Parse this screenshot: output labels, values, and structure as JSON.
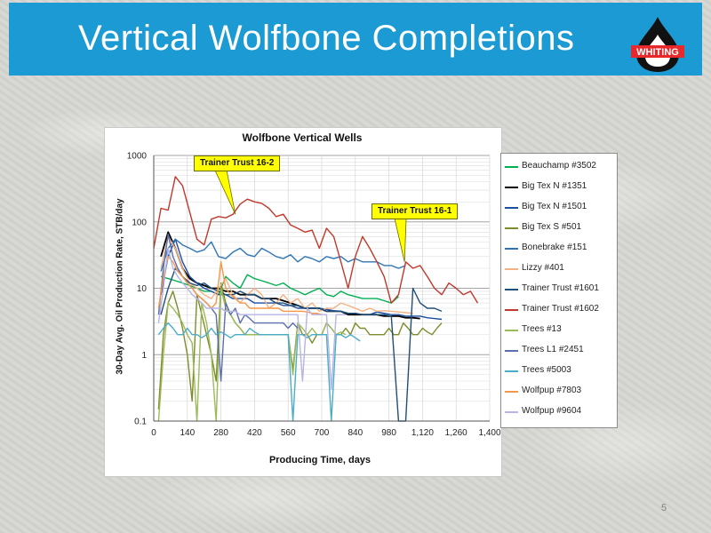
{
  "slide": {
    "title": "Vertical Wolfbone Completions",
    "logo_text": "WHITING",
    "page_number": "5",
    "colors": {
      "title_bar": "#1b9ad4",
      "logo_red": "#e8282b",
      "logo_black": "#111111"
    }
  },
  "chart_data": {
    "type": "line",
    "title": "Wolfbone Vertical Wells",
    "xlabel": "Producing Time, days",
    "ylabel": "30-Day Avg. Oil Production Rate, STB/day",
    "yscale": "log",
    "xlim": [
      0,
      1400
    ],
    "ylim": [
      0.1,
      1000
    ],
    "x_ticks": [
      "0",
      "140",
      "280",
      "420",
      "560",
      "700",
      "840",
      "980",
      "1,120",
      "1,260",
      "1,400"
    ],
    "y_ticks": [
      "0.1",
      "1",
      "10",
      "100",
      "1000"
    ],
    "grid": true,
    "legend_position": "right",
    "annotations": [
      {
        "text": "Trainer Trust 16-2",
        "x": 340,
        "y": 130
      },
      {
        "text": "Trainer Trust 16-1",
        "x": 1045,
        "y": 25
      }
    ],
    "series": [
      {
        "name": "Beauchamp #3502",
        "color": "#00b050",
        "x": [
          30,
          60,
          90,
          120,
          150,
          180,
          210,
          240,
          270,
          300,
          330,
          360,
          390,
          420,
          450,
          480,
          510,
          540,
          570,
          600,
          630,
          660,
          690,
          720,
          750,
          780,
          810,
          840,
          870,
          900,
          930,
          960,
          990,
          1020
        ],
        "y": [
          15,
          14,
          13,
          12,
          11,
          10,
          9,
          9,
          8,
          15,
          12,
          10,
          16,
          14,
          13,
          12,
          11,
          12,
          10,
          9,
          8,
          9,
          10,
          8,
          7.5,
          9,
          8,
          7.5,
          7,
          7,
          7,
          6.5,
          6,
          7.5
        ]
      },
      {
        "name": "Big Tex N #1351",
        "color": "#000000",
        "x": [
          30,
          60,
          90,
          120,
          150,
          180,
          210,
          240,
          270,
          300,
          330,
          360,
          390,
          420,
          450,
          480,
          510,
          540,
          570,
          600,
          630,
          660,
          690,
          720,
          750,
          780,
          810,
          840,
          870,
          900,
          930,
          960,
          990,
          1020,
          1050,
          1080,
          1110
        ],
        "y": [
          30,
          70,
          40,
          20,
          14,
          12,
          11,
          10,
          10,
          9,
          9,
          8,
          8,
          8,
          7,
          7,
          7,
          6.5,
          6,
          5.5,
          5,
          5,
          5,
          4.5,
          4.5,
          4.5,
          4,
          4,
          4,
          4,
          4,
          3.8,
          3.8,
          3.8,
          3.6,
          3.6,
          3.5
        ]
      },
      {
        "name": "Big Tex N #1501",
        "color": "#1f4e9f",
        "x": [
          30,
          60,
          90,
          120,
          150,
          180,
          210,
          240,
          270,
          300,
          330,
          360,
          390,
          420,
          450,
          480,
          510,
          540,
          570,
          600,
          630,
          660,
          690,
          720,
          750,
          780,
          810,
          840,
          870,
          900,
          930,
          960,
          990,
          1020,
          1050,
          1080,
          1110,
          1140,
          1170,
          1200
        ],
        "y": [
          8,
          30,
          55,
          25,
          15,
          12,
          10,
          9,
          8,
          8,
          7,
          7,
          7,
          6,
          6,
          6,
          6,
          5.5,
          5.5,
          5,
          5,
          5,
          5,
          4.8,
          4.6,
          4.5,
          4.2,
          4.2,
          4,
          4,
          4.4,
          4.2,
          4,
          4,
          3.8,
          3.8,
          3.8,
          3.6,
          3.5,
          3.4
        ]
      },
      {
        "name": "Big Tex S #501",
        "color": "#7f8c2b",
        "x": [
          20,
          40,
          60,
          80,
          100,
          120,
          140,
          160,
          180,
          200,
          220,
          240,
          260,
          280,
          300,
          320,
          340,
          360,
          380,
          400,
          420,
          440,
          460,
          480,
          500,
          520,
          540,
          560,
          580,
          600,
          620,
          640,
          660,
          680,
          700,
          720,
          740,
          760,
          780,
          800,
          820,
          840,
          860,
          880,
          900,
          920,
          940,
          960,
          980,
          1000,
          1020,
          1040,
          1060,
          1080,
          1100,
          1120,
          1140,
          1160,
          1180,
          1200
        ],
        "y": [
          0.15,
          2,
          6,
          9,
          5,
          2.5,
          1,
          0.2,
          8,
          4,
          2,
          1,
          0.4,
          12,
          6,
          4,
          3,
          2.5,
          2,
          2,
          2,
          2,
          2,
          2,
          2,
          2,
          2,
          2,
          0.6,
          3,
          2,
          2,
          1.5,
          2,
          2,
          3,
          2.5,
          2,
          2,
          2.5,
          2,
          3,
          2.5,
          2.5,
          2,
          2,
          2,
          2,
          2.5,
          2,
          2,
          3,
          2.5,
          2,
          2,
          2.5,
          2.2,
          2,
          2.5,
          3
        ]
      },
      {
        "name": "Bonebrake #151",
        "color": "#2e75b6",
        "x": [
          30,
          60,
          90,
          120,
          150,
          180,
          210,
          240,
          270,
          300,
          330,
          360,
          390,
          420,
          450,
          480,
          510,
          540,
          570,
          600,
          630,
          660,
          690,
          720,
          750,
          780,
          810,
          840,
          870,
          900,
          930,
          960,
          990,
          1020,
          1050
        ],
        "y": [
          18,
          40,
          55,
          45,
          40,
          35,
          38,
          50,
          30,
          28,
          35,
          40,
          32,
          30,
          40,
          35,
          30,
          28,
          32,
          25,
          30,
          28,
          25,
          30,
          28,
          30,
          25,
          28,
          25,
          25,
          25,
          22,
          22,
          20,
          22
        ]
      },
      {
        "name": "Lizzy #401",
        "color": "#f4b183",
        "x": [
          30,
          60,
          90,
          120,
          150,
          180,
          210,
          240,
          270,
          300,
          330,
          360,
          390,
          420,
          450,
          480,
          510,
          540,
          570,
          600,
          630,
          660,
          690,
          720,
          750,
          780,
          810,
          840,
          870,
          900,
          930,
          960,
          990,
          1020,
          1050,
          1080
        ],
        "y": [
          20,
          60,
          40,
          20,
          12,
          10,
          8,
          7,
          10,
          14,
          8,
          6,
          8,
          10,
          8,
          5,
          6,
          8,
          6,
          7,
          5,
          6,
          4.5,
          5,
          5,
          6,
          5.5,
          5,
          4.5,
          5,
          4.5,
          4.6,
          4.5,
          4.4,
          4.3,
          4.2
        ]
      },
      {
        "name": "Trainer Trust #1601",
        "color": "#1f4e79",
        "x": [
          30,
          60,
          90,
          120,
          150,
          180,
          210,
          240,
          270,
          300,
          330,
          360,
          390,
          420,
          450,
          480,
          510,
          540,
          570,
          600,
          630,
          660,
          690,
          720,
          750,
          780,
          810,
          840,
          870,
          900,
          930,
          960,
          990,
          1020,
          1050,
          1080,
          1110,
          1140,
          1170,
          1200
        ],
        "y": [
          4,
          10,
          20,
          15,
          12,
          11,
          12,
          10,
          9,
          8,
          8,
          9,
          8,
          8,
          7,
          7,
          6,
          6,
          5.5,
          5.5,
          5,
          5,
          5,
          4.5,
          4.5,
          4.5,
          4.2,
          4.2,
          4,
          4,
          4,
          4,
          3.8,
          0.1,
          0.1,
          10,
          6,
          5,
          5,
          4.5
        ]
      },
      {
        "name": "Trainer Trust #1602",
        "color": "#c0392b",
        "x": [
          0,
          30,
          60,
          90,
          120,
          150,
          180,
          210,
          240,
          270,
          300,
          330,
          360,
          390,
          420,
          450,
          480,
          510,
          540,
          570,
          600,
          630,
          660,
          690,
          720,
          750,
          780,
          810,
          840,
          870,
          900,
          930,
          960,
          990,
          1020,
          1050,
          1080,
          1110,
          1140,
          1170,
          1200,
          1230,
          1260,
          1290,
          1320,
          1350
        ],
        "y": [
          40,
          160,
          150,
          480,
          350,
          140,
          55,
          45,
          110,
          120,
          115,
          130,
          185,
          220,
          200,
          190,
          160,
          120,
          130,
          90,
          80,
          70,
          75,
          40,
          80,
          60,
          25,
          10,
          30,
          60,
          40,
          25,
          15,
          6,
          8,
          25,
          20,
          22,
          15,
          10,
          8,
          12,
          10,
          8,
          9,
          6
        ]
      },
      {
        "name": "Trees #13",
        "color": "#9bbb59",
        "x": [
          20,
          40,
          60,
          80,
          100,
          120,
          140,
          160,
          180,
          200,
          220,
          240,
          260,
          280,
          300,
          320,
          340,
          360,
          380,
          400,
          420,
          440,
          460,
          480,
          500,
          520,
          540,
          560,
          580,
          600,
          620,
          640,
          660,
          680,
          700,
          720,
          740,
          760,
          780,
          800
        ],
        "y": [
          0.1,
          1,
          6,
          5,
          4,
          3,
          2,
          1.5,
          0.1,
          6,
          3,
          1,
          0.1,
          10,
          5,
          4,
          3,
          2.5,
          2,
          2,
          2,
          2,
          2,
          2,
          2,
          2,
          2,
          2,
          0.5,
          3,
          2.5,
          2,
          2.5,
          2,
          2,
          3,
          2.5,
          2,
          2.2,
          2
        ]
      },
      {
        "name": "Trees L1 #2451",
        "color": "#5b6fae",
        "x": [
          20,
          40,
          60,
          80,
          100,
          120,
          140,
          160,
          180,
          200,
          220,
          240,
          260,
          280,
          300,
          320,
          340,
          360,
          380,
          400,
          420,
          440,
          460,
          480,
          500,
          520,
          540,
          560,
          580,
          600
        ],
        "y": [
          4,
          20,
          65,
          30,
          20,
          15,
          12,
          10,
          8,
          7,
          6,
          5,
          4,
          0.4,
          6,
          4,
          5,
          3,
          4,
          3.5,
          3,
          3,
          3,
          3,
          3,
          3,
          3,
          2.5,
          3,
          2.5
        ]
      },
      {
        "name": "Trees #5003",
        "color": "#4bacc6",
        "x": [
          20,
          40,
          60,
          80,
          100,
          120,
          140,
          160,
          180,
          200,
          220,
          240,
          260,
          280,
          300,
          320,
          340,
          360,
          380,
          400,
          420,
          440,
          460,
          480,
          500,
          520,
          540,
          560,
          580,
          600,
          620,
          640,
          660,
          680,
          700,
          720,
          740,
          760,
          780,
          800,
          820,
          840,
          860
        ],
        "y": [
          2,
          2.5,
          3,
          2.5,
          2,
          2,
          2.5,
          2,
          2,
          1.8,
          2,
          2.5,
          2,
          2.2,
          2,
          1.8,
          2,
          2,
          2,
          2.5,
          2.2,
          2,
          2,
          2,
          2,
          2,
          2,
          2,
          0.1,
          2,
          2,
          1.8,
          2,
          2,
          2,
          2,
          0.1,
          2,
          2,
          1.8,
          2,
          1.8,
          1.6
        ]
      },
      {
        "name": "Wolfpup #7803",
        "color": "#f79646",
        "x": [
          20,
          40,
          60,
          80,
          100,
          120,
          140,
          160,
          180,
          200,
          220,
          240,
          260,
          280,
          300,
          320,
          340,
          360,
          380,
          400,
          420,
          440,
          460,
          480,
          500,
          520,
          540,
          560,
          580,
          600,
          620,
          640,
          660,
          680,
          700
        ],
        "y": [
          5,
          15,
          30,
          25,
          18,
          15,
          12,
          10,
          8,
          7,
          6,
          5,
          6,
          25,
          10,
          8,
          7,
          6,
          6,
          5,
          5,
          5,
          5,
          5,
          5,
          5,
          4.5,
          4.5,
          4.5,
          4.5,
          4.5,
          4.4,
          4.2,
          4.2,
          4
        ]
      },
      {
        "name": "Wolfpup #9604",
        "color": "#b4b4e6",
        "x": [
          20,
          40,
          60,
          80,
          100,
          120,
          140,
          160,
          180,
          200,
          220,
          240,
          260,
          280,
          300,
          320,
          340,
          360,
          380,
          400,
          420,
          440,
          460,
          480,
          500,
          520,
          540,
          560,
          580,
          600,
          620,
          640,
          660,
          680,
          700,
          720,
          740,
          760,
          780,
          800
        ],
        "y": [
          3,
          10,
          40,
          20,
          15,
          12,
          10,
          8,
          7,
          6,
          5,
          5,
          5,
          5,
          4.5,
          4.5,
          4.5,
          4,
          4,
          4,
          4,
          4,
          4,
          4,
          4,
          4,
          4,
          4,
          4,
          4,
          0.4,
          5,
          4,
          4,
          4,
          4,
          0.3,
          4,
          4,
          4
        ]
      }
    ]
  }
}
